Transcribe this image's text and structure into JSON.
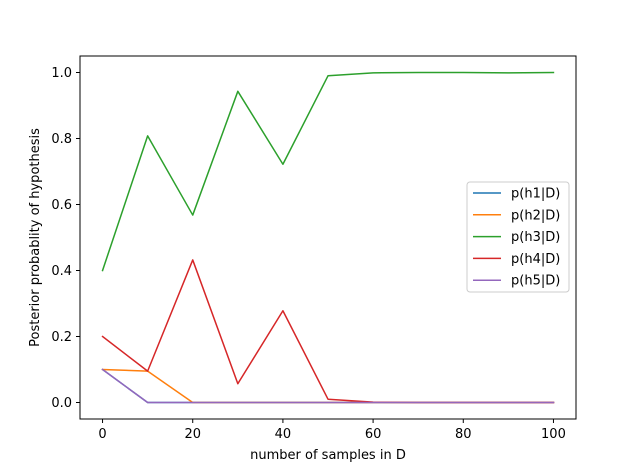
{
  "chart_data": {
    "type": "line",
    "title": "",
    "xlabel": "number of samples in D",
    "ylabel": "Posterior probablity of hypothesis",
    "xlim": [
      -5,
      105
    ],
    "ylim": [
      -0.05,
      1.05
    ],
    "xticks": [
      0,
      20,
      40,
      60,
      80,
      100
    ],
    "xtick_labels": [
      "0",
      "20",
      "40",
      "60",
      "80",
      "100"
    ],
    "yticks": [
      0.0,
      0.2,
      0.4,
      0.6,
      0.8,
      1.0
    ],
    "ytick_labels": [
      "0.0",
      "0.2",
      "0.4",
      "0.6",
      "0.8",
      "1.0"
    ],
    "grid": false,
    "legend_position": "right",
    "x": [
      0,
      10,
      20,
      30,
      40,
      50,
      60,
      70,
      80,
      90,
      100
    ],
    "series": [
      {
        "name": "p(h1|D)",
        "color": "#1f77b4",
        "values": [
          0.1,
          0.0,
          0.0,
          0.0,
          0.0,
          0.0,
          0.0,
          0.0,
          0.0,
          0.0,
          0.0
        ]
      },
      {
        "name": "p(h2|D)",
        "color": "#ff7f0e",
        "values": [
          0.1,
          0.095,
          0.0,
          0.0,
          0.0,
          0.0,
          0.0,
          0.0,
          0.0,
          0.0,
          0.0
        ]
      },
      {
        "name": "p(h3|D)",
        "color": "#2ca02c",
        "values": [
          0.4,
          0.808,
          0.568,
          0.943,
          0.722,
          0.99,
          0.999,
          1.0,
          1.0,
          0.999,
          1.0
        ]
      },
      {
        "name": "p(h4|D)",
        "color": "#d62728",
        "values": [
          0.2,
          0.095,
          0.432,
          0.057,
          0.278,
          0.01,
          0.001,
          0.0,
          0.0,
          0.0,
          0.0
        ]
      },
      {
        "name": "p(h5|D)",
        "color": "#9467bd",
        "values": [
          0.1,
          0.0,
          0.0,
          0.0,
          0.0,
          0.0,
          0.0,
          0.0,
          0.0,
          0.0,
          0.0
        ]
      }
    ]
  }
}
